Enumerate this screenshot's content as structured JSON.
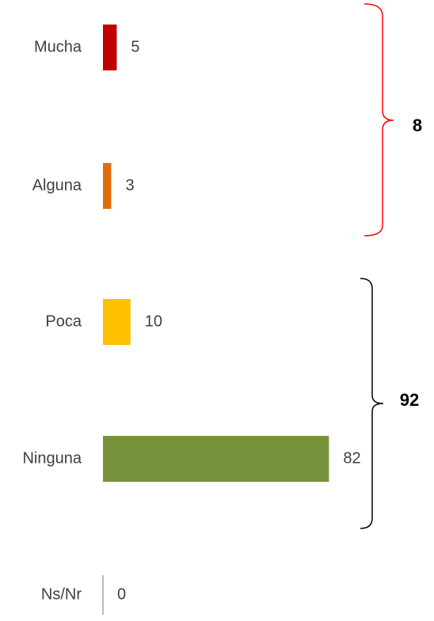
{
  "chart_data": {
    "type": "bar",
    "orientation": "horizontal",
    "categories": [
      "Mucha",
      "Alguna",
      "Poca",
      "Ninguna",
      "Ns/Nr"
    ],
    "values": [
      5,
      3,
      10,
      82,
      0
    ],
    "colors": [
      "#c00000",
      "#e36c0a",
      "#ffc000",
      "#76933c",
      "#a6a6a6"
    ],
    "annotations": [
      "8",
      "92"
    ]
  }
}
